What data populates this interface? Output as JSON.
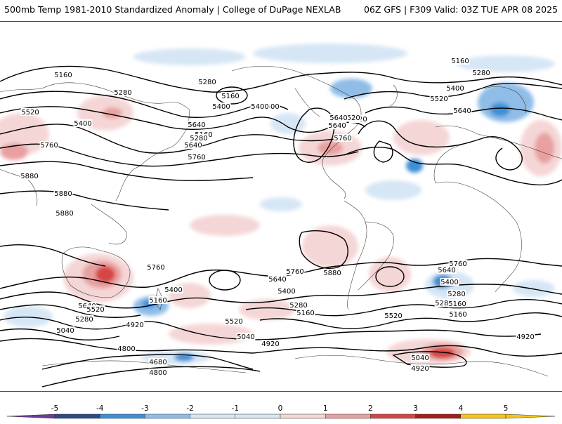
{
  "header": {
    "title_left": "500mb Temp 1981-2010 Standardized Anomaly | College of DuPage NEXLAB",
    "title_right": "06Z GFS | F309 Valid: 03Z TUE APR 08 2025"
  },
  "colorbar": {
    "ticks": [
      "-5",
      "-4",
      "-3",
      "-2",
      "-1",
      "0",
      "1",
      "2",
      "3",
      "4",
      "5"
    ],
    "colors": [
      "#6a3d9a",
      "#2c4a87",
      "#3d8fd6",
      "#8fbde8",
      "#d6e6f5",
      "#ffffff",
      "#f5d6d6",
      "#e8a0a0",
      "#d64545",
      "#a81c1c",
      "#f5c518"
    ]
  },
  "contour_labels": [
    "5160",
    "5280",
    "5160",
    "5280",
    "5160",
    "5280",
    "5400",
    "5520",
    "5400",
    "5640",
    "5520",
    "5640",
    "5760",
    "5400",
    "5520",
    "5640",
    "5760",
    "5400",
    "5640",
    "5520",
    "5160",
    "5280",
    "5400",
    "5640",
    "5760",
    "5880",
    "5880",
    "5880",
    "5760",
    "5400",
    "5640",
    "5520",
    "5280",
    "5160",
    "5040",
    "4920",
    "4800",
    "4680",
    "4800",
    "5520",
    "5040",
    "4920",
    "5760",
    "5640",
    "5400",
    "5280",
    "5160",
    "5520",
    "5880",
    "5760",
    "5640",
    "5400",
    "5280",
    "5160",
    "4920",
    "5040",
    "4920",
    "5160",
    "5280"
  ]
}
